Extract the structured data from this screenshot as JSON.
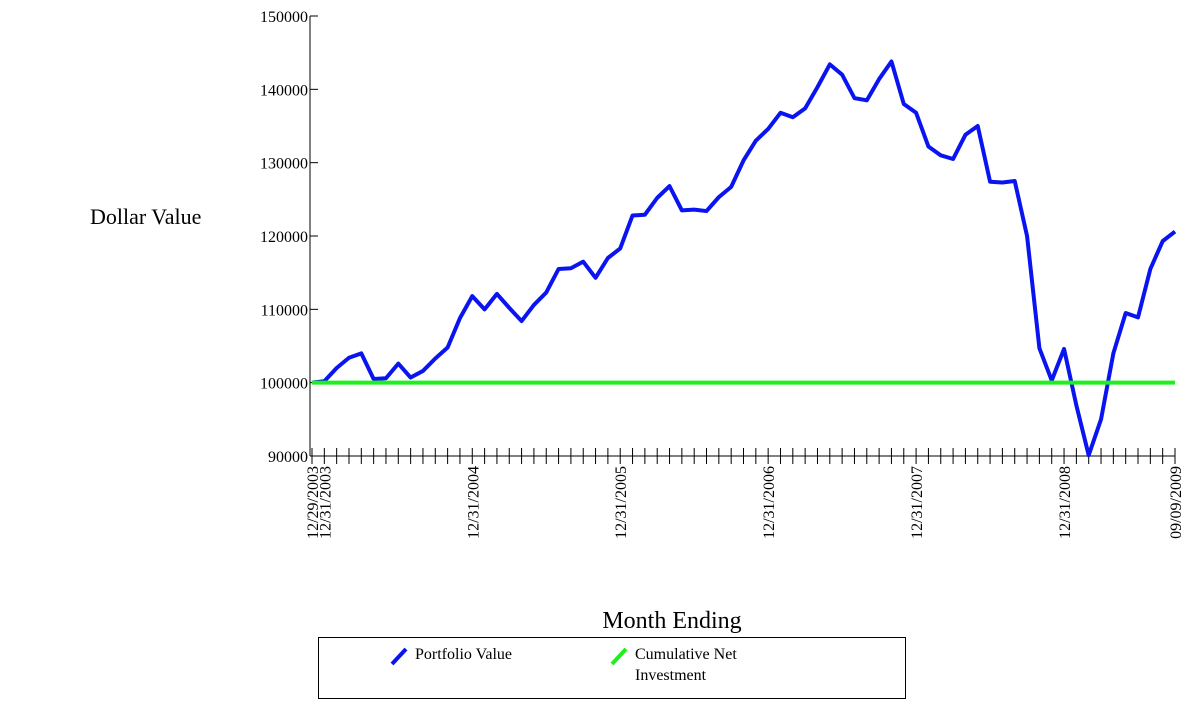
{
  "chart_data": {
    "type": "line",
    "y_label": "Dollar Value",
    "x_label": "Month Ending",
    "categories": [
      "12/29/2003",
      "12/31/2003",
      null,
      null,
      null,
      null,
      null,
      null,
      null,
      null,
      null,
      null,
      null,
      "12/31/2004",
      null,
      null,
      null,
      null,
      null,
      null,
      null,
      null,
      null,
      null,
      null,
      "12/31/2005",
      null,
      null,
      null,
      null,
      null,
      null,
      null,
      null,
      null,
      null,
      null,
      "12/31/2006",
      null,
      null,
      null,
      null,
      null,
      null,
      null,
      null,
      null,
      null,
      null,
      "12/31/2007",
      null,
      null,
      null,
      null,
      null,
      null,
      null,
      null,
      null,
      null,
      null,
      "12/31/2008",
      null,
      null,
      null,
      null,
      null,
      null,
      null,
      null,
      "09/09/2009"
    ],
    "series": [
      {
        "name": "Portfolio Value",
        "color": "#0a14f0",
        "values": [
          100000,
          100200,
          102000,
          103400,
          104000,
          100500,
          100600,
          102600,
          100700,
          101600,
          103300,
          104800,
          108800,
          111800,
          110000,
          112100,
          110200,
          108400,
          110600,
          112300,
          115500,
          115600,
          116500,
          114300,
          117000,
          118300,
          122800,
          122900,
          125200,
          126800,
          123500,
          123600,
          123400,
          125300,
          126700,
          130300,
          133000,
          134600,
          136800,
          136200,
          137400,
          140300,
          143400,
          142000,
          138800,
          138500,
          141400,
          143800,
          138000,
          136800,
          132200,
          131000,
          130500,
          133800,
          135000,
          127400,
          127300,
          127500,
          120000,
          104700,
          100300,
          104600,
          96900,
          90100,
          95000,
          104000,
          109500,
          108900,
          115500,
          119300,
          120600
        ]
      },
      {
        "name": "Cumulative Net Investment",
        "color": "#1ef01e",
        "values": [
          100000,
          100000,
          100000,
          100000,
          100000,
          100000,
          100000,
          100000,
          100000,
          100000,
          100000,
          100000,
          100000,
          100000,
          100000,
          100000,
          100000,
          100000,
          100000,
          100000,
          100000,
          100000,
          100000,
          100000,
          100000,
          100000,
          100000,
          100000,
          100000,
          100000,
          100000,
          100000,
          100000,
          100000,
          100000,
          100000,
          100000,
          100000,
          100000,
          100000,
          100000,
          100000,
          100000,
          100000,
          100000,
          100000,
          100000,
          100000,
          100000,
          100000,
          100000,
          100000,
          100000,
          100000,
          100000,
          100000,
          100000,
          100000,
          100000,
          100000,
          100000,
          100000,
          100000,
          100000,
          100000,
          100000,
          100000,
          100000,
          100000,
          100000,
          100000
        ]
      }
    ],
    "ylim": [
      90000,
      150000
    ],
    "yticks": [
      90000,
      100000,
      110000,
      120000,
      130000,
      140000,
      150000
    ],
    "grid": false
  }
}
